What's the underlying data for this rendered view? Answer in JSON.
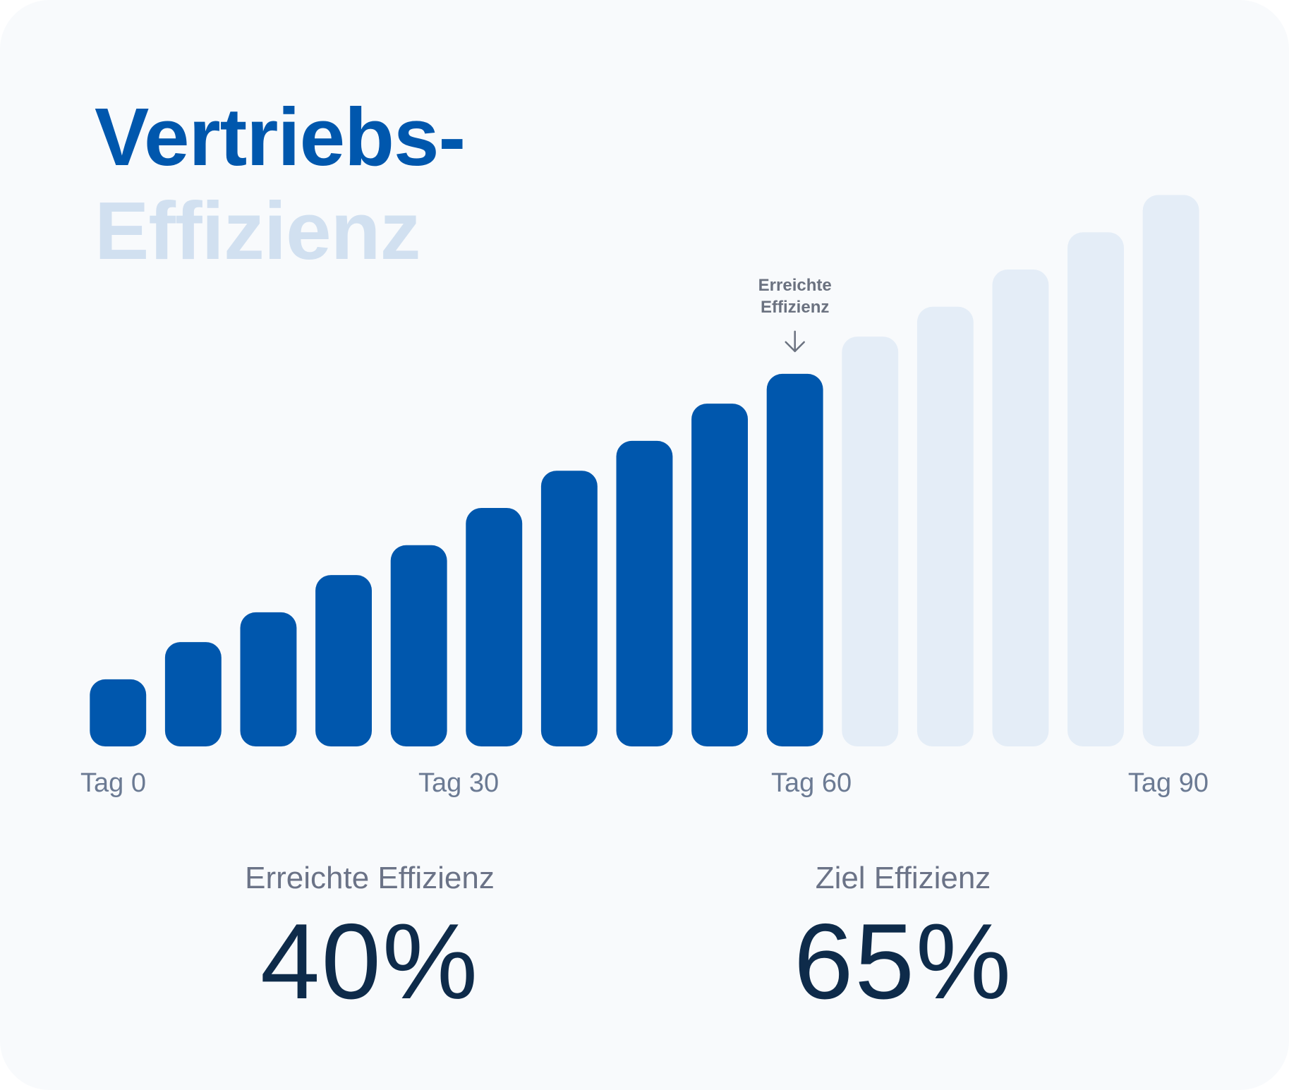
{
  "title": {
    "line1": "Vertriebs-",
    "line2": "Effizienz"
  },
  "colors": {
    "achieved": "#0057ad",
    "remaining": "#e4edf7",
    "title_accent": "#0057ad",
    "title_muted": "#d1e0f0",
    "value_text": "#0e2b4a"
  },
  "chart_data": {
    "type": "bar",
    "title": "",
    "xlabel": "",
    "ylabel": "",
    "x_ticks": [
      "Tag 0",
      "Tag 30",
      "Tag 60",
      "Tag 90"
    ],
    "values": [
      9,
      14,
      18,
      23,
      27,
      32,
      37,
      41,
      46,
      50,
      55,
      59,
      64,
      69,
      74
    ],
    "achieved_count": 10,
    "ylim": [
      0,
      80
    ],
    "grid": false,
    "annotation": {
      "line1": "Erreichte",
      "line2": "Effizienz",
      "bar_index": 9,
      "icon": "arrow-down-icon"
    }
  },
  "stats": {
    "achieved": {
      "label": "Erreichte Effizienz",
      "value": "40%"
    },
    "target": {
      "label": "Ziel Effizienz",
      "value": "65%"
    }
  }
}
